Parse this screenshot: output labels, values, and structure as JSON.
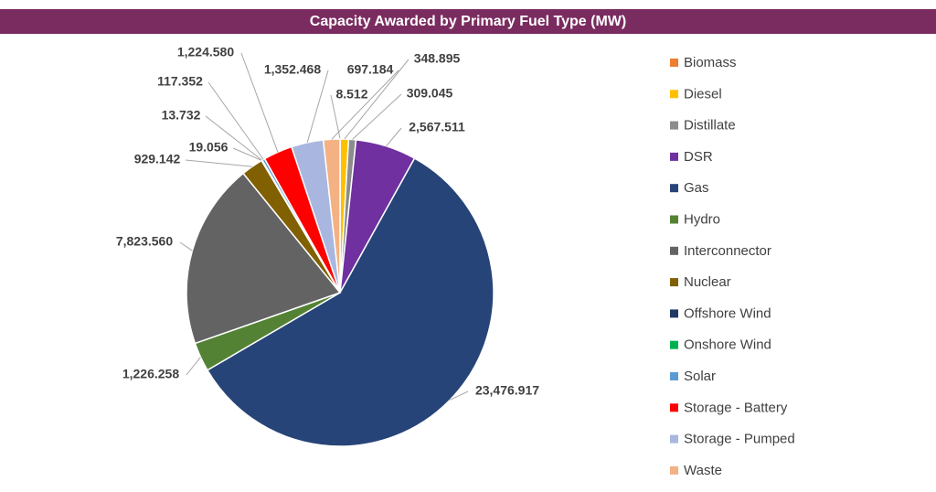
{
  "chart_data": {
    "type": "pie",
    "title": "Capacity Awarded by Primary Fuel Type (MW)",
    "categories": [
      "Biomass",
      "Diesel",
      "Distillate",
      "DSR",
      "Gas",
      "Hydro",
      "Interconnector",
      "Nuclear",
      "Offshore Wind",
      "Onshore Wind",
      "Solar",
      "Storage - Battery",
      "Storage - Pumped",
      "Waste"
    ],
    "values": [
      8.512,
      348.895,
      309.045,
      2567.511,
      23476.917,
      1226.258,
      7823.56,
      929.142,
      19.056,
      13.732,
      117.352,
      1224.58,
      1352.468,
      697.184
    ],
    "value_labels": [
      "8.512",
      "348.895",
      "309.045",
      "2,567.511",
      "23,476.917",
      "1,226.258",
      "7,823.560",
      "929.142",
      "19.056",
      "13.732",
      "117.352",
      "1,224.580",
      "1,352.468",
      "697.184"
    ],
    "colors": [
      "#ed7d31",
      "#ffc000",
      "#8c8c8c",
      "#7030a0",
      "#264478",
      "#548235",
      "#636363",
      "#806000",
      "#203864",
      "#00b050",
      "#5b9bd5",
      "#ff0000",
      "#a9b7e0",
      "#f4b183"
    ],
    "legend": "right"
  }
}
